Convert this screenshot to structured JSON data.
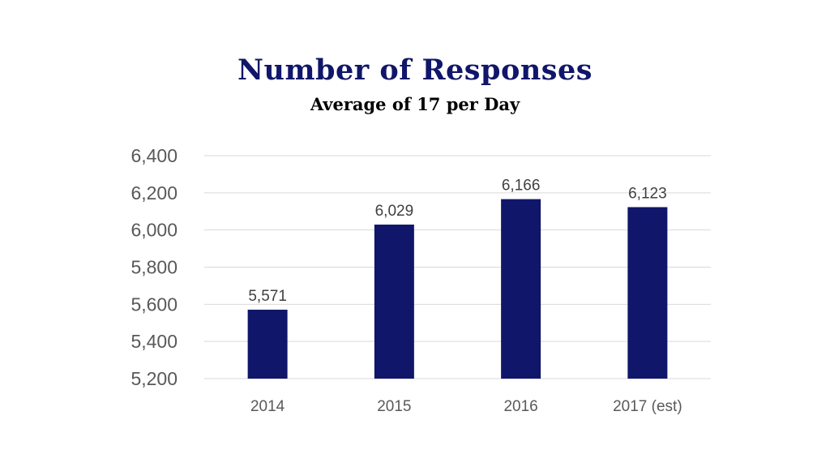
{
  "chart_data": {
    "type": "bar",
    "title": "Number of Responses",
    "subtitle": "Average of 17 per Day",
    "categories": [
      "2014",
      "2015",
      "2016",
      "2017 (est)"
    ],
    "values": [
      5571,
      6029,
      6166,
      6123
    ],
    "data_labels": [
      "5,571",
      "6,029",
      "6,166",
      "6,123"
    ],
    "ylim": [
      5200,
      6400
    ],
    "y_ticks": [
      5200,
      5400,
      5600,
      5800,
      6000,
      6200,
      6400
    ],
    "y_tick_labels": [
      "5,200",
      "5,400",
      "5,600",
      "5,800",
      "6,000",
      "6,200",
      "6,400"
    ],
    "xlabel": "",
    "ylabel": "",
    "grid": true,
    "legend": "none",
    "bar_color": "#101669",
    "grid_color": "#d9d9d9"
  }
}
